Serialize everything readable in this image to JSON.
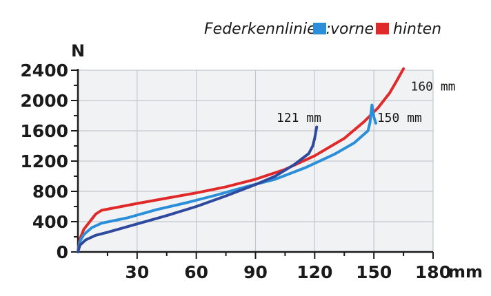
{
  "chart_data": {
    "type": "line",
    "title": "",
    "xlabel": "mm",
    "ylabel": "N",
    "xlim": [
      0,
      180
    ],
    "ylim": [
      0,
      2400
    ],
    "x_ticks": [
      30,
      60,
      90,
      120,
      150,
      180
    ],
    "y_ticks": [
      0,
      400,
      800,
      1200,
      1600,
      2000,
      2400
    ],
    "grid": true,
    "legend": {
      "title": "Federkennlinien:",
      "placement": "top-right",
      "entries": [
        {
          "label": "vorne",
          "color": "#2a8fd8"
        },
        {
          "label": "hinten",
          "color": "#e02a2a"
        }
      ]
    },
    "series": [
      {
        "color": "#e02a2a",
        "points": [
          [
            0,
            0
          ],
          [
            1,
            170
          ],
          [
            3,
            300
          ],
          [
            6,
            400
          ],
          [
            9,
            500
          ],
          [
            12,
            550
          ],
          [
            20,
            590
          ],
          [
            30,
            640
          ],
          [
            45,
            710
          ],
          [
            60,
            780
          ],
          [
            75,
            860
          ],
          [
            90,
            960
          ],
          [
            105,
            1090
          ],
          [
            120,
            1270
          ],
          [
            135,
            1500
          ],
          [
            145,
            1720
          ],
          [
            152,
            1900
          ],
          [
            158,
            2100
          ],
          [
            162,
            2280
          ],
          [
            165,
            2420
          ]
        ]
      },
      {
        "color": "#2a8fd8",
        "points": [
          [
            0,
            0
          ],
          [
            1,
            140
          ],
          [
            3,
            230
          ],
          [
            7,
            320
          ],
          [
            12,
            380
          ],
          [
            25,
            450
          ],
          [
            40,
            560
          ],
          [
            55,
            650
          ],
          [
            70,
            750
          ],
          [
            85,
            860
          ],
          [
            100,
            960
          ],
          [
            115,
            1110
          ],
          [
            130,
            1290
          ],
          [
            140,
            1440
          ],
          [
            147,
            1600
          ],
          [
            148,
            1700
          ],
          [
            149,
            1940
          ],
          [
            150,
            1780
          ],
          [
            151,
            1700
          ]
        ]
      },
      {
        "color": "#2e4a9e",
        "points": [
          [
            0,
            0
          ],
          [
            1,
            90
          ],
          [
            4,
            160
          ],
          [
            9,
            220
          ],
          [
            15,
            260
          ],
          [
            30,
            370
          ],
          [
            45,
            480
          ],
          [
            60,
            600
          ],
          [
            75,
            740
          ],
          [
            90,
            890
          ],
          [
            100,
            1000
          ],
          [
            110,
            1160
          ],
          [
            117,
            1300
          ],
          [
            119,
            1400
          ],
          [
            120,
            1500
          ],
          [
            121,
            1650
          ]
        ]
      }
    ],
    "annotations": [
      {
        "text": "121 mm",
        "x": 112,
        "y": 1720
      },
      {
        "text": "150 mm",
        "x": 163,
        "y": 1720
      },
      {
        "text": "160 mm",
        "x": 180,
        "y": 2130
      }
    ]
  }
}
